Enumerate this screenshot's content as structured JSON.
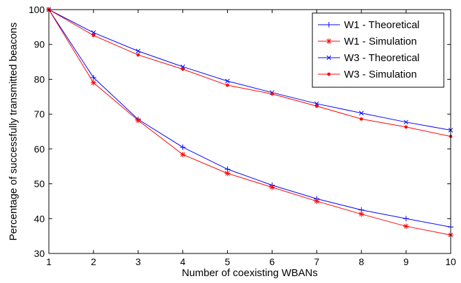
{
  "chart_data": {
    "type": "line",
    "title": "",
    "xlabel": "Number of coexisting WBANs",
    "ylabel": "Percentage of successfully transmitted beacons",
    "xlim": [
      1,
      10
    ],
    "ylim": [
      30,
      100
    ],
    "xticks": [
      1,
      2,
      3,
      4,
      5,
      6,
      7,
      8,
      9,
      10
    ],
    "yticks": [
      30,
      40,
      50,
      60,
      70,
      80,
      90,
      100
    ],
    "grid": false,
    "legend_position": "top-right",
    "x": [
      1,
      2,
      3,
      4,
      5,
      6,
      7,
      8,
      9,
      10
    ],
    "series": [
      {
        "name": "W1 - Theoretical",
        "color": "#0000ff",
        "marker": "plus",
        "values": [
          100,
          80.5,
          68.5,
          60.5,
          54.2,
          49.6,
          45.7,
          42.5,
          40.0,
          37.6
        ]
      },
      {
        "name": "W1 - Simulation",
        "color": "#ff0000",
        "marker": "star",
        "values": [
          100,
          79.0,
          68.2,
          58.4,
          53.0,
          49.0,
          45.0,
          41.3,
          37.8,
          35.3
        ]
      },
      {
        "name": "W3 - Theoretical",
        "color": "#0000ff",
        "marker": "x",
        "values": [
          100,
          93.4,
          88.1,
          83.6,
          79.5,
          76.2,
          73.0,
          70.3,
          67.7,
          65.4
        ]
      },
      {
        "name": "W3 - Simulation",
        "color": "#ff0000",
        "marker": "dot",
        "values": [
          100,
          92.6,
          87.0,
          82.9,
          78.3,
          75.8,
          72.3,
          68.6,
          66.3,
          63.6
        ]
      }
    ]
  }
}
